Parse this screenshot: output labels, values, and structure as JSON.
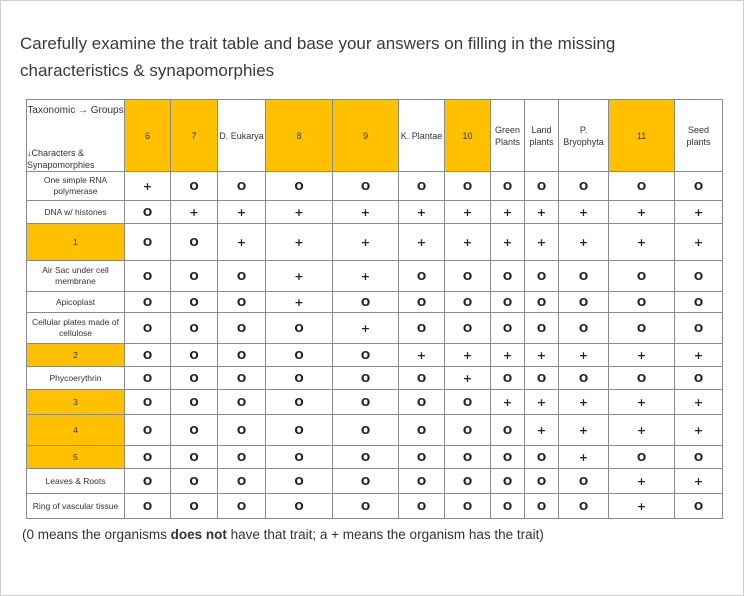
{
  "title": "Carefully examine the trait table and base your answers on filling in the missing characteristics & synapomorphies",
  "table": {
    "corner_top": "Taxonomic → Groups",
    "corner_bottom": "↓Characters & Synapomorphies",
    "columns": [
      "6",
      "7",
      "D. Eukarya",
      "8",
      "9",
      "K. Plantae",
      "10",
      "Green Plants",
      "Land plants",
      "P. Bryophyta",
      "11",
      "Seed plants"
    ],
    "rows": [
      {
        "label": "One simple RNA polymerase",
        "values": [
          "+",
          "O",
          "O",
          "O",
          "O",
          "O",
          "O",
          "O",
          "O",
          "O",
          "O",
          "O"
        ]
      },
      {
        "label": "DNA w/ histones",
        "values": [
          "O",
          "+",
          "+",
          "+",
          "+",
          "+",
          "+",
          "+",
          "+",
          "+",
          "+",
          "+"
        ]
      },
      {
        "label": "1",
        "values": [
          "O",
          "O",
          "+",
          "+",
          "+",
          "+",
          "+",
          "+",
          "+",
          "+",
          "+",
          "+"
        ]
      },
      {
        "label": "Air Sac under cell membrane",
        "values": [
          "O",
          "O",
          "O",
          "+",
          "+",
          "O",
          "O",
          "O",
          "O",
          "O",
          "O",
          "O"
        ]
      },
      {
        "label": "Apicoplast",
        "values": [
          "O",
          "O",
          "O",
          "+",
          "O",
          "O",
          "O",
          "O",
          "O",
          "O",
          "O",
          "O"
        ]
      },
      {
        "label": "Cellular plates made of cellulose",
        "values": [
          "O",
          "O",
          "O",
          "O",
          "+",
          "O",
          "O",
          "O",
          "O",
          "O",
          "O",
          "O"
        ]
      },
      {
        "label": "2",
        "values": [
          "O",
          "O",
          "O",
          "O",
          "O",
          "+",
          "+",
          "+",
          "+",
          "+",
          "+",
          "+"
        ]
      },
      {
        "label": "Phycoerythrin",
        "values": [
          "O",
          "O",
          "O",
          "O",
          "O",
          "O",
          "+",
          "O",
          "O",
          "O",
          "O",
          "O"
        ]
      },
      {
        "label": "3",
        "values": [
          "O",
          "O",
          "O",
          "O",
          "O",
          "O",
          "O",
          "+",
          "+",
          "+",
          "+",
          "+"
        ]
      },
      {
        "label": "4",
        "values": [
          "O",
          "O",
          "O",
          "O",
          "O",
          "O",
          "O",
          "O",
          "+",
          "+",
          "+",
          "+"
        ]
      },
      {
        "label": "5",
        "values": [
          "O",
          "O",
          "O",
          "O",
          "O",
          "O",
          "O",
          "O",
          "O",
          "+",
          "O",
          "O"
        ]
      },
      {
        "label": "Leaves & Roots",
        "values": [
          "O",
          "O",
          "O",
          "O",
          "O",
          "O",
          "O",
          "O",
          "O",
          "O",
          "+",
          "+"
        ]
      },
      {
        "label": "Ring of vascular tissue",
        "values": [
          "O",
          "O",
          "O",
          "O",
          "O",
          "O",
          "O",
          "O",
          "O",
          "O",
          "+",
          "O"
        ]
      }
    ]
  },
  "highlight_color": "#ffc000",
  "note": {
    "part1": "(0 means the organisms ",
    "bold": "does not",
    "part2": " have that trait; a + means the organism has the trait)"
  }
}
